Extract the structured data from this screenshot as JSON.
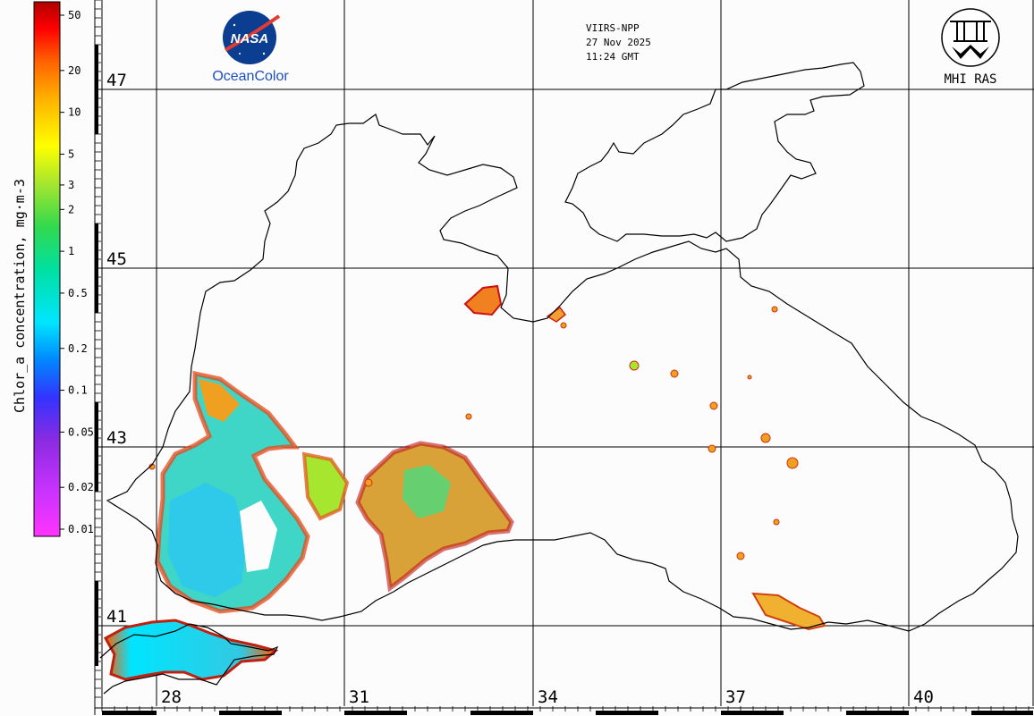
{
  "colorbar": {
    "title": "Chlor_a concentration, mg·m-3",
    "ticks": [
      "50",
      "20",
      "10",
      "5",
      "3",
      "2",
      "1",
      "0.5",
      "0.2",
      "0.1",
      "0.05",
      "0.02",
      "0.01"
    ]
  },
  "header": {
    "satellite": "VIIRS-NPP",
    "date": "27 Nov 2025",
    "time": "11:24 GMT"
  },
  "logos": {
    "nasa_text": "NASA",
    "oceancolor_label": "OceanColor",
    "mhi_label": "MHI RAS"
  },
  "map": {
    "lat_labels": [
      "47",
      "45",
      "43",
      "41"
    ],
    "lon_labels": [
      "28",
      "31",
      "34",
      "37",
      "40"
    ]
  },
  "colors": {
    "coast": "#000000",
    "grid": "#000000",
    "background": "#fcfcfc",
    "nasa_blue": "#0b3d91",
    "nasa_red": "#e03c31",
    "oceancolor_blue": "#1d4fc4"
  },
  "colormap": [
    "#ff33ff",
    "#cc33ff",
    "#8a2be2",
    "#3333ff",
    "#0088ff",
    "#00e5ff",
    "#00e0a0",
    "#33d94d",
    "#a6e62e",
    "#ffff00",
    "#ffb000",
    "#ff6000",
    "#ff0000",
    "#b00000"
  ]
}
